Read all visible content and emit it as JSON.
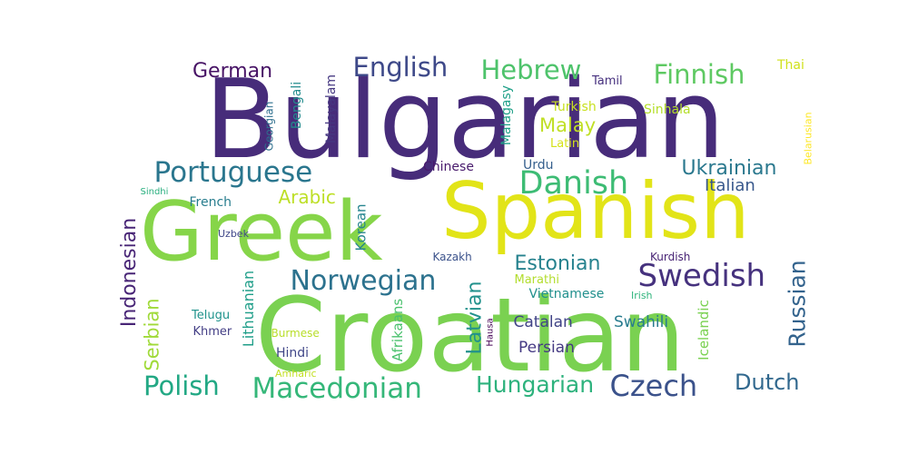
{
  "words": [
    {
      "text": "Bulgarian",
      "color": "#472c7a",
      "rotate": false
    },
    {
      "text": "Spanish",
      "color": "#e2e418",
      "rotate": false
    },
    {
      "text": "Croatian",
      "color": "#7ad151",
      "rotate": false
    },
    {
      "text": "Greek",
      "color": "#86d549",
      "rotate": false
    },
    {
      "text": "Portuguese",
      "color": "#2a768e",
      "rotate": false
    },
    {
      "text": "Macedonian",
      "color": "#35b779",
      "rotate": false
    },
    {
      "text": "Danish",
      "color": "#3dbc74",
      "rotate": false
    },
    {
      "text": "Norwegian",
      "color": "#2c728e",
      "rotate": false
    },
    {
      "text": "Swedish",
      "color": "#46327e",
      "rotate": false
    },
    {
      "text": "Hebrew",
      "color": "#4ec36b",
      "rotate": false
    },
    {
      "text": "English",
      "color": "#3e4989",
      "rotate": false
    },
    {
      "text": "Finnish",
      "color": "#5ec962",
      "rotate": false
    },
    {
      "text": "Hungarian",
      "color": "#2db27d",
      "rotate": false
    },
    {
      "text": "Czech",
      "color": "#3b528b",
      "rotate": false
    },
    {
      "text": "Polish",
      "color": "#22a884",
      "rotate": false
    },
    {
      "text": "Indonesian",
      "color": "#482576",
      "rotate": true
    },
    {
      "text": "Russian",
      "color": "#33638d",
      "rotate": true
    },
    {
      "text": "Ukrainian",
      "color": "#2a788e",
      "rotate": false
    },
    {
      "text": "Estonian",
      "color": "#26828e",
      "rotate": false
    },
    {
      "text": "Dutch",
      "color": "#31688e",
      "rotate": false
    },
    {
      "text": "German",
      "color": "#471365",
      "rotate": false
    },
    {
      "text": "Arabic",
      "color": "#bddf26",
      "rotate": false
    },
    {
      "text": "Serbian",
      "color": "#a0da39",
      "rotate": true
    },
    {
      "text": "Latvian",
      "color": "#21918c",
      "rotate": true
    },
    {
      "text": "Malay",
      "color": "#c0df25",
      "rotate": false
    },
    {
      "text": "Italian",
      "color": "#38588c",
      "rotate": false
    },
    {
      "text": "Swahili",
      "color": "#287c8e",
      "rotate": false
    },
    {
      "text": "Catalan",
      "color": "#414487",
      "rotate": false
    },
    {
      "text": "Persian",
      "color": "#443983",
      "rotate": false
    },
    {
      "text": "Vietnamese",
      "color": "#21908d",
      "rotate": false
    },
    {
      "text": "Korean",
      "color": "#25848e",
      "rotate": true
    },
    {
      "text": "Lithuanian",
      "color": "#1f9e89",
      "rotate": true
    },
    {
      "text": "Afrikaans",
      "color": "#4ac16d",
      "rotate": true
    },
    {
      "text": "Icelandic",
      "color": "#7ad151",
      "rotate": true
    },
    {
      "text": "Bengali",
      "color": "#228c8d",
      "rotate": true
    },
    {
      "text": "Malayalam",
      "color": "#453781",
      "rotate": true
    },
    {
      "text": "Malagasy",
      "color": "#1fa088",
      "rotate": true
    },
    {
      "text": "Georgian",
      "color": "#2e6f8e",
      "rotate": true
    },
    {
      "text": "Belarusian",
      "color": "#fde725",
      "rotate": true
    },
    {
      "text": "Turkish",
      "color": "#c8e020",
      "rotate": false
    },
    {
      "text": "Sinhala",
      "color": "#b5de2b",
      "rotate": false
    },
    {
      "text": "Latin",
      "color": "#d5e21a",
      "rotate": false
    },
    {
      "text": "Chinese",
      "color": "#481a6c",
      "rotate": false
    },
    {
      "text": "Urdu",
      "color": "#355f8d",
      "rotate": false
    },
    {
      "text": "Tamil",
      "color": "#46307e",
      "rotate": false
    },
    {
      "text": "Thai",
      "color": "#d0e11c",
      "rotate": false
    },
    {
      "text": "French",
      "color": "#287d8e",
      "rotate": false
    },
    {
      "text": "Sindhi",
      "color": "#29af7f",
      "rotate": false
    },
    {
      "text": "Uzbek",
      "color": "#3f4788",
      "rotate": false
    },
    {
      "text": "Kazakh",
      "color": "#3b528b",
      "rotate": false
    },
    {
      "text": "Marathi",
      "color": "#b2dd2d",
      "rotate": false
    },
    {
      "text": "Irish",
      "color": "#2fb47c",
      "rotate": false
    },
    {
      "text": "Kurdish",
      "color": "#482475",
      "rotate": false
    },
    {
      "text": "Telugu",
      "color": "#20938c",
      "rotate": false
    },
    {
      "text": "Khmer",
      "color": "#433e85",
      "rotate": false
    },
    {
      "text": "Burmese",
      "color": "#b8de29",
      "rotate": false
    },
    {
      "text": "Hindi",
      "color": "#404688",
      "rotate": false
    },
    {
      "text": "Amharic",
      "color": "#c2df23",
      "rotate": false
    },
    {
      "text": "Hausa",
      "color": "#440154",
      "rotate": true
    }
  ]
}
